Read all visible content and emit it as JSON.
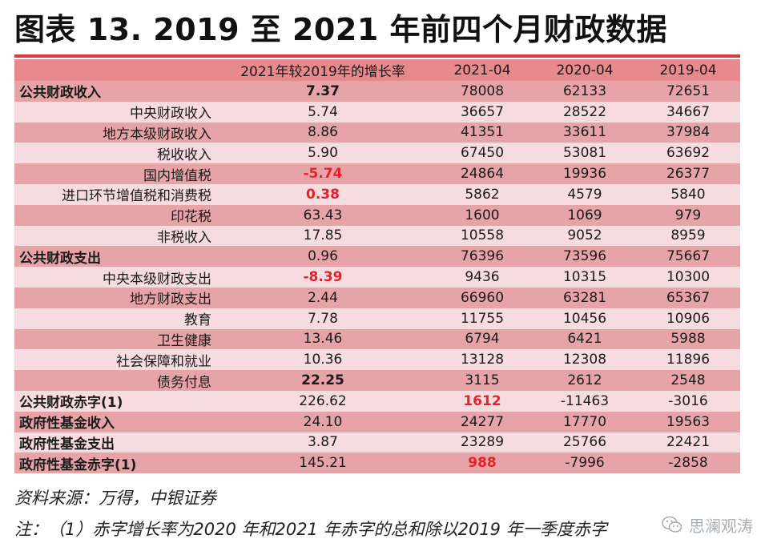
{
  "title": "图表 13. 2019 至 2021 年前四个月财政数据",
  "table": {
    "headers": [
      "",
      "2021年较2019年的增长率",
      "2021-04",
      "2020-04",
      "2019-04"
    ],
    "rows": [
      {
        "label": "公共财政收入",
        "level": 0,
        "growth": "7.37",
        "growth_style": "bold",
        "v2021": "78008",
        "v2020": "62133",
        "v2019": "72651",
        "v2021_style": ""
      },
      {
        "label": "中央财政收入",
        "level": 1,
        "growth": "5.74",
        "growth_style": "",
        "v2021": "36657",
        "v2020": "28522",
        "v2019": "34667",
        "v2021_style": ""
      },
      {
        "label": "地方本级财政收入",
        "level": 1,
        "growth": "8.86",
        "growth_style": "",
        "v2021": "41351",
        "v2020": "33611",
        "v2019": "37984",
        "v2021_style": ""
      },
      {
        "label": "税收收入",
        "level": 1,
        "growth": "5.90",
        "growth_style": "",
        "v2021": "67450",
        "v2020": "53081",
        "v2019": "63692",
        "v2021_style": ""
      },
      {
        "label": "国内增值税",
        "level": 1,
        "growth": "-5.74",
        "growth_style": "red",
        "v2021": "24864",
        "v2020": "19936",
        "v2019": "26377",
        "v2021_style": ""
      },
      {
        "label": "进口环节增值税和消费税",
        "level": 1,
        "growth": "0.38",
        "growth_style": "red",
        "v2021": "5862",
        "v2020": "4579",
        "v2019": "5840",
        "v2021_style": ""
      },
      {
        "label": "印花税",
        "level": 1,
        "growth": "63.43",
        "growth_style": "",
        "v2021": "1600",
        "v2020": "1069",
        "v2019": "979",
        "v2021_style": ""
      },
      {
        "label": "非税收入",
        "level": 1,
        "growth": "17.85",
        "growth_style": "",
        "v2021": "10558",
        "v2020": "9052",
        "v2019": "8959",
        "v2021_style": ""
      },
      {
        "label": "公共财政支出",
        "level": 0,
        "growth": "0.96",
        "growth_style": "",
        "v2021": "76396",
        "v2020": "73596",
        "v2019": "75667",
        "v2021_style": ""
      },
      {
        "label": "中央本级财政支出",
        "level": 1,
        "growth": "-8.39",
        "growth_style": "red",
        "v2021": "9436",
        "v2020": "10315",
        "v2019": "10300",
        "v2021_style": ""
      },
      {
        "label": "地方财政支出",
        "level": 1,
        "growth": "2.44",
        "growth_style": "",
        "v2021": "66960",
        "v2020": "63281",
        "v2019": "65367",
        "v2021_style": ""
      },
      {
        "label": "教育",
        "level": 1,
        "growth": "7.78",
        "growth_style": "",
        "v2021": "11755",
        "v2020": "10456",
        "v2019": "10906",
        "v2021_style": ""
      },
      {
        "label": "卫生健康",
        "level": 1,
        "growth": "13.46",
        "growth_style": "",
        "v2021": "6794",
        "v2020": "6421",
        "v2019": "5988",
        "v2021_style": ""
      },
      {
        "label": "社会保障和就业",
        "level": 1,
        "growth": "10.36",
        "growth_style": "",
        "v2021": "13128",
        "v2020": "12308",
        "v2019": "11896",
        "v2021_style": ""
      },
      {
        "label": "债务付息",
        "level": 1,
        "growth": "22.25",
        "growth_style": "bold",
        "v2021": "3115",
        "v2020": "2612",
        "v2019": "2548",
        "v2021_style": ""
      },
      {
        "label": "公共财政赤字(1)",
        "level": 0,
        "growth": "226.62",
        "growth_style": "",
        "v2021": "1612",
        "v2020": "-11463",
        "v2019": "-3016",
        "v2021_style": "red"
      },
      {
        "label": "政府性基金收入",
        "level": 0,
        "growth": "24.10",
        "growth_style": "",
        "v2021": "24277",
        "v2020": "17770",
        "v2019": "19563",
        "v2021_style": ""
      },
      {
        "label": "政府性基金支出",
        "level": 0,
        "growth": "3.87",
        "growth_style": "",
        "v2021": "23289",
        "v2020": "25766",
        "v2019": "22421",
        "v2021_style": ""
      },
      {
        "label": "政府性基金赤字(1)",
        "level": 0,
        "growth": "145.21",
        "growth_style": "",
        "v2021": "988",
        "v2020": "-7996",
        "v2019": "-2858",
        "v2021_style": "red"
      }
    ]
  },
  "source": "资料来源：万得，中银证券",
  "note": "注：（1）赤字增长率为2020 年和2021 年赤字的总和除以2019 年一季度赤字",
  "watermark": {
    "text": "思澜观涛",
    "icon": "wechat-icon"
  },
  "colors": {
    "header": "#e8898e",
    "row_dark": "#e6a4a9",
    "row_light": "#f7dcdf",
    "rule": "#d93a44",
    "highlight_red": "#e8202a"
  }
}
